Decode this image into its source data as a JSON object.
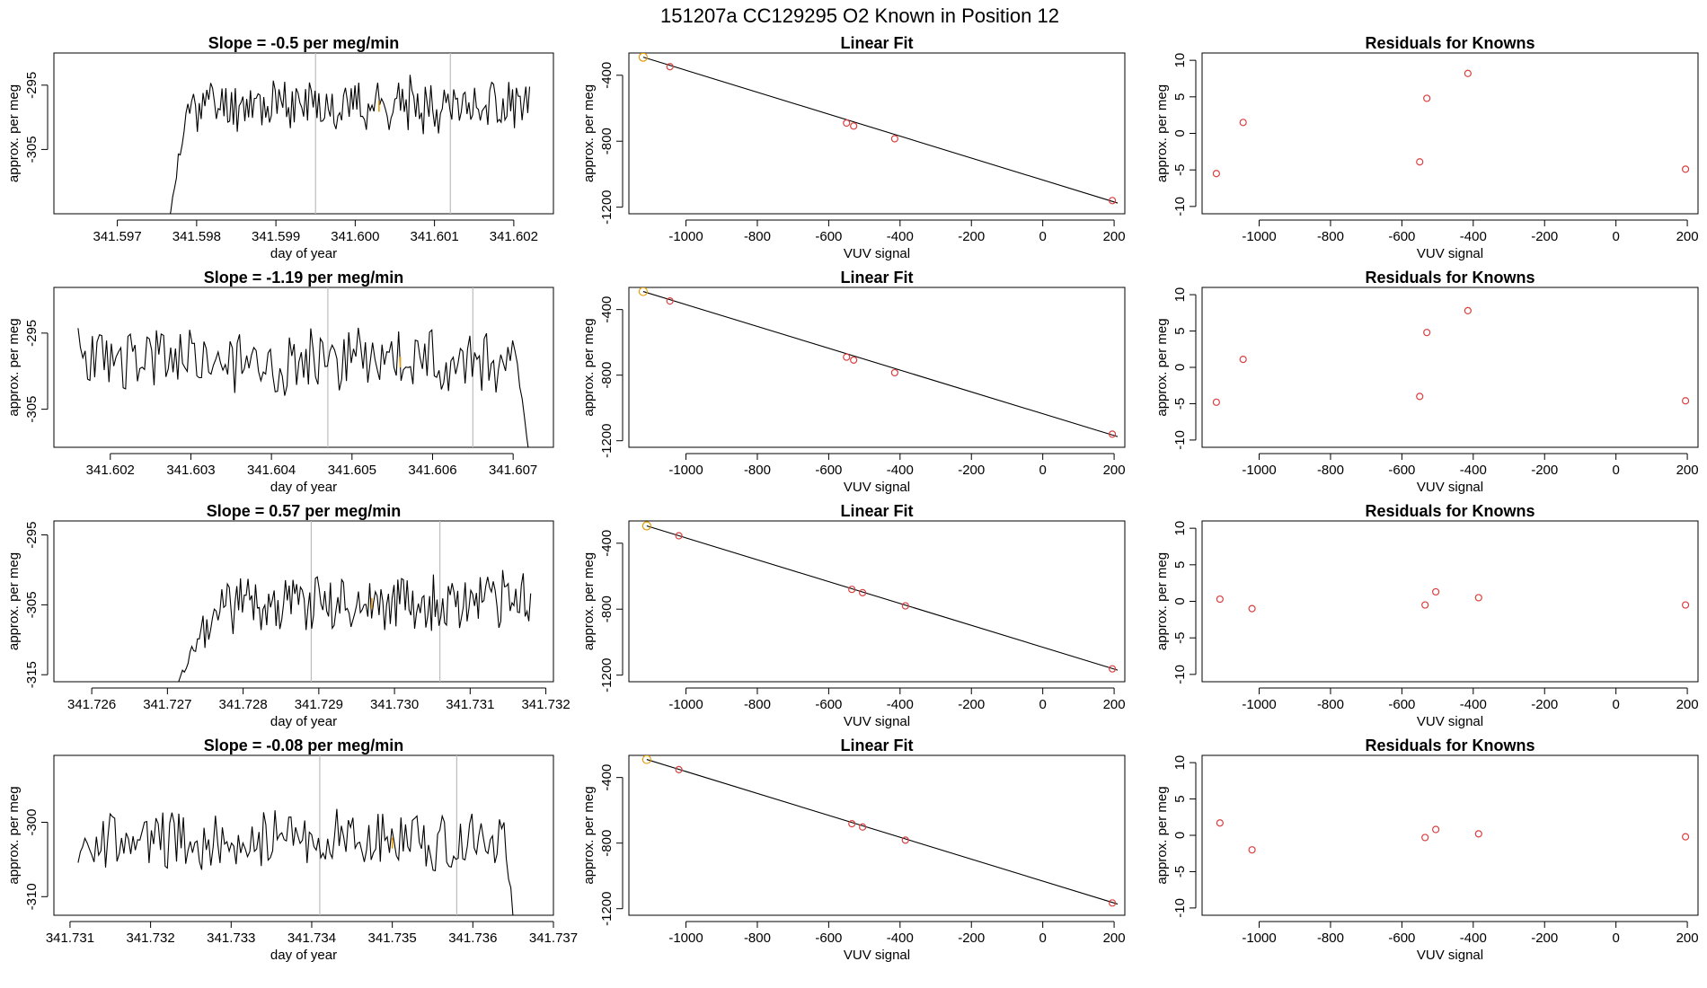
{
  "figure_title": "151207a      CC129295    O2 Known in Position  12",
  "chart_data": [
    {
      "type": "line",
      "panel": "time-series",
      "row": 1,
      "title": "Slope =  -0.5  per meg/min",
      "xlabel": "day of year",
      "ylabel": "approx. per meg",
      "xlim": [
        341.5962,
        341.6025
      ],
      "ylim": [
        -315,
        -290
      ],
      "xticks": [
        {
          "v": 341.597,
          "label": "341.597"
        },
        {
          "v": 341.598,
          "label": "341.598"
        },
        {
          "v": 341.599,
          "label": "341.599"
        },
        {
          "v": 341.6,
          "label": "341.600"
        },
        {
          "v": 341.601,
          "label": "341.601"
        },
        {
          "v": 341.602,
          "label": "341.602"
        }
      ],
      "yticks": [
        {
          "v": -295,
          "label": "-295"
        },
        {
          "v": -305,
          "label": "-305"
        }
      ],
      "vlines": [
        341.5995,
        341.6012
      ],
      "highlight_x": 341.6003,
      "series_seed": 11,
      "series_start": 341.59765,
      "series_end": 341.6022,
      "series_base": -298.0,
      "series_amp": 2.6,
      "series_drop_from": -316,
      "series_drop_end": 0,
      "series_drop_len": 0.00025
    },
    {
      "type": "scatter",
      "panel": "linear-fit",
      "row": 1,
      "title": "Linear Fit",
      "xlabel": "VUV signal",
      "ylabel": "approx. per meg",
      "xlim": [
        -1160,
        230
      ],
      "ylim": [
        -1240,
        -265
      ],
      "xticks": [
        {
          "v": -1000,
          "label": "-1000"
        },
        {
          "v": -800,
          "label": "-800"
        },
        {
          "v": -600,
          "label": "-600"
        },
        {
          "v": -400,
          "label": "-400"
        },
        {
          "v": -200,
          "label": "-200"
        },
        {
          "v": 0,
          "label": "0"
        },
        {
          "v": 200,
          "label": "200"
        }
      ],
      "yticks": [
        {
          "v": -400,
          "label": "-400"
        },
        {
          "v": -800,
          "label": "-800"
        },
        {
          "v": -1200,
          "label": "-1200"
        }
      ],
      "line": {
        "x1": -1120,
        "y1": -290,
        "x2": 210,
        "y2": -1175
      },
      "points": [
        {
          "x": -1120,
          "y": -290,
          "highlight": true
        },
        {
          "x": -1045,
          "y": -348
        },
        {
          "x": -550,
          "y": -690
        },
        {
          "x": -530,
          "y": -708
        },
        {
          "x": -415,
          "y": -785
        },
        {
          "x": 195,
          "y": -1160
        }
      ]
    },
    {
      "type": "scatter",
      "panel": "residuals",
      "row": 1,
      "title": "Residuals for Knowns",
      "xlabel": "VUV signal",
      "ylabel": "approx. per meg",
      "xlim": [
        -1160,
        230
      ],
      "ylim": [
        -11,
        11
      ],
      "xticks": [
        {
          "v": -1000,
          "label": "-1000"
        },
        {
          "v": -800,
          "label": "-800"
        },
        {
          "v": -600,
          "label": "-600"
        },
        {
          "v": -400,
          "label": "-400"
        },
        {
          "v": -200,
          "label": "-200"
        },
        {
          "v": 0,
          "label": "0"
        },
        {
          "v": 200,
          "label": "200"
        }
      ],
      "yticks": [
        {
          "v": 10,
          "label": "10"
        },
        {
          "v": 5,
          "label": "5"
        },
        {
          "v": 0,
          "label": "0"
        },
        {
          "v": -5,
          "label": "-5"
        },
        {
          "v": -10,
          "label": "-10"
        }
      ],
      "points": [
        {
          "x": -1120,
          "y": -5.5
        },
        {
          "x": -1045,
          "y": 1.5
        },
        {
          "x": -550,
          "y": -3.9
        },
        {
          "x": -530,
          "y": 4.8
        },
        {
          "x": -415,
          "y": 8.2
        },
        {
          "x": 195,
          "y": -4.9
        }
      ]
    },
    {
      "type": "line",
      "panel": "time-series",
      "row": 2,
      "title": "Slope =  -1.19  per meg/min",
      "xlabel": "day of year",
      "ylabel": "approx. per meg",
      "xlim": [
        341.6013,
        341.6075
      ],
      "ylim": [
        -310,
        -289
      ],
      "xticks": [
        {
          "v": 341.602,
          "label": "341.602"
        },
        {
          "v": 341.603,
          "label": "341.603"
        },
        {
          "v": 341.604,
          "label": "341.604"
        },
        {
          "v": 341.605,
          "label": "341.605"
        },
        {
          "v": 341.606,
          "label": "341.606"
        },
        {
          "v": 341.607,
          "label": "341.607"
        }
      ],
      "yticks": [
        {
          "v": -295,
          "label": "-295"
        },
        {
          "v": -305,
          "label": "-305"
        }
      ],
      "vlines": [
        341.6047,
        341.6065
      ],
      "highlight_x": 341.6056,
      "series_seed": 23,
      "series_start": 341.6016,
      "series_end": 341.6072,
      "series_base": -298.5,
      "series_amp": 2.8,
      "series_drop_from": 0,
      "series_drop_end": -311,
      "series_drop_len": 0.00015
    },
    {
      "type": "scatter",
      "panel": "linear-fit",
      "row": 2,
      "title": "Linear Fit",
      "xlabel": "VUV signal",
      "ylabel": "approx. per meg",
      "xlim": [
        -1160,
        230
      ],
      "ylim": [
        -1240,
        -265
      ],
      "xticks": [
        {
          "v": -1000,
          "label": "-1000"
        },
        {
          "v": -800,
          "label": "-800"
        },
        {
          "v": -600,
          "label": "-600"
        },
        {
          "v": -400,
          "label": "-400"
        },
        {
          "v": -200,
          "label": "-200"
        },
        {
          "v": 0,
          "label": "0"
        },
        {
          "v": 200,
          "label": "200"
        }
      ],
      "yticks": [
        {
          "v": -400,
          "label": "-400"
        },
        {
          "v": -800,
          "label": "-800"
        },
        {
          "v": -1200,
          "label": "-1200"
        }
      ],
      "line": {
        "x1": -1120,
        "y1": -290,
        "x2": 210,
        "y2": -1175
      },
      "points": [
        {
          "x": -1120,
          "y": -290,
          "highlight": true
        },
        {
          "x": -1045,
          "y": -348
        },
        {
          "x": -550,
          "y": -690
        },
        {
          "x": -530,
          "y": -708
        },
        {
          "x": -415,
          "y": -785
        },
        {
          "x": 195,
          "y": -1160
        }
      ]
    },
    {
      "type": "scatter",
      "panel": "residuals",
      "row": 2,
      "title": "Residuals for Knowns",
      "xlabel": "VUV signal",
      "ylabel": "approx. per meg",
      "xlim": [
        -1160,
        230
      ],
      "ylim": [
        -11,
        11
      ],
      "xticks": [
        {
          "v": -1000,
          "label": "-1000"
        },
        {
          "v": -800,
          "label": "-800"
        },
        {
          "v": -600,
          "label": "-600"
        },
        {
          "v": -400,
          "label": "-400"
        },
        {
          "v": -200,
          "label": "-200"
        },
        {
          "v": 0,
          "label": "0"
        },
        {
          "v": 200,
          "label": "200"
        }
      ],
      "yticks": [
        {
          "v": 10,
          "label": "10"
        },
        {
          "v": 5,
          "label": "5"
        },
        {
          "v": 0,
          "label": "0"
        },
        {
          "v": -5,
          "label": "-5"
        },
        {
          "v": -10,
          "label": "-10"
        }
      ],
      "points": [
        {
          "x": -1120,
          "y": -4.8
        },
        {
          "x": -1045,
          "y": 1.1
        },
        {
          "x": -550,
          "y": -4.0
        },
        {
          "x": -530,
          "y": 4.8
        },
        {
          "x": -415,
          "y": 7.8
        },
        {
          "x": 195,
          "y": -4.6
        }
      ]
    },
    {
      "type": "line",
      "panel": "time-series",
      "row": 3,
      "title": "Slope =  0.57  per meg/min",
      "xlabel": "day of year",
      "ylabel": "approx. per meg",
      "xlim": [
        341.7255,
        341.7321
      ],
      "ylim": [
        -316,
        -293
      ],
      "xticks": [
        {
          "v": 341.726,
          "label": "341.726"
        },
        {
          "v": 341.727,
          "label": "341.727"
        },
        {
          "v": 341.728,
          "label": "341.728"
        },
        {
          "v": 341.729,
          "label": "341.729"
        },
        {
          "v": 341.73,
          "label": "341.730"
        },
        {
          "v": 341.731,
          "label": "341.731"
        },
        {
          "v": 341.732,
          "label": "341.732"
        }
      ],
      "yticks": [
        {
          "v": -295,
          "label": "-295"
        },
        {
          "v": -305,
          "label": "-305"
        },
        {
          "v": -315,
          "label": "-315"
        }
      ],
      "vlines": [
        341.7289,
        341.7306
      ],
      "highlight_x": 341.7297,
      "series_seed": 37,
      "series_start": 341.7271,
      "series_end": 341.7318,
      "series_base": -304.5,
      "series_amp": 2.8,
      "series_drop_from": -317,
      "series_drop_end": 0,
      "series_drop_len": 0.0006
    },
    {
      "type": "scatter",
      "panel": "linear-fit",
      "row": 3,
      "title": "Linear Fit",
      "xlabel": "VUV signal",
      "ylabel": "approx. per meg",
      "xlim": [
        -1160,
        230
      ],
      "ylim": [
        -1240,
        -265
      ],
      "xticks": [
        {
          "v": -1000,
          "label": "-1000"
        },
        {
          "v": -800,
          "label": "-800"
        },
        {
          "v": -600,
          "label": "-600"
        },
        {
          "v": -400,
          "label": "-400"
        },
        {
          "v": -200,
          "label": "-200"
        },
        {
          "v": 0,
          "label": "0"
        },
        {
          "v": 200,
          "label": "200"
        }
      ],
      "yticks": [
        {
          "v": -400,
          "label": "-400"
        },
        {
          "v": -800,
          "label": "-800"
        },
        {
          "v": -1200,
          "label": "-1200"
        }
      ],
      "line": {
        "x1": -1110,
        "y1": -295,
        "x2": 210,
        "y2": -1170
      },
      "points": [
        {
          "x": -1110,
          "y": -295,
          "highlight": true
        },
        {
          "x": -1020,
          "y": -355
        },
        {
          "x": -535,
          "y": -680
        },
        {
          "x": -505,
          "y": -700
        },
        {
          "x": -385,
          "y": -780
        },
        {
          "x": 195,
          "y": -1162
        }
      ]
    },
    {
      "type": "scatter",
      "panel": "residuals",
      "row": 3,
      "title": "Residuals for Knowns",
      "xlabel": "VUV signal",
      "ylabel": "approx. per meg",
      "xlim": [
        -1160,
        230
      ],
      "ylim": [
        -11,
        11
      ],
      "xticks": [
        {
          "v": -1000,
          "label": "-1000"
        },
        {
          "v": -800,
          "label": "-800"
        },
        {
          "v": -600,
          "label": "-600"
        },
        {
          "v": -400,
          "label": "-400"
        },
        {
          "v": -200,
          "label": "-200"
        },
        {
          "v": 0,
          "label": "0"
        },
        {
          "v": 200,
          "label": "200"
        }
      ],
      "yticks": [
        {
          "v": 10,
          "label": "10"
        },
        {
          "v": 5,
          "label": "5"
        },
        {
          "v": 0,
          "label": "0"
        },
        {
          "v": -5,
          "label": "-5"
        },
        {
          "v": -10,
          "label": "-10"
        }
      ],
      "points": [
        {
          "x": -1110,
          "y": 0.3
        },
        {
          "x": -1020,
          "y": -1.0
        },
        {
          "x": -535,
          "y": -0.5
        },
        {
          "x": -505,
          "y": 1.3
        },
        {
          "x": -385,
          "y": 0.5
        },
        {
          "x": 195,
          "y": -0.5
        }
      ]
    },
    {
      "type": "line",
      "panel": "time-series",
      "row": 4,
      "title": "Slope =  -0.08  per meg/min",
      "xlabel": "day of year",
      "ylabel": "approx. per meg",
      "xlim": [
        341.7308,
        341.737
      ],
      "ylim": [
        -312.5,
        -291
      ],
      "xticks": [
        {
          "v": 341.731,
          "label": "341.731"
        },
        {
          "v": 341.732,
          "label": "341.732"
        },
        {
          "v": 341.733,
          "label": "341.733"
        },
        {
          "v": 341.734,
          "label": "341.734"
        },
        {
          "v": 341.735,
          "label": "341.735"
        },
        {
          "v": 341.736,
          "label": "341.736"
        },
        {
          "v": 341.737,
          "label": "341.737"
        }
      ],
      "yticks": [
        {
          "v": -300,
          "label": "-300"
        },
        {
          "v": -310,
          "label": "-310"
        }
      ],
      "vlines": [
        341.7341,
        341.7358
      ],
      "highlight_x": 341.735,
      "series_seed": 53,
      "series_start": 341.7311,
      "series_end": 341.7365,
      "series_base": -302.5,
      "series_amp": 2.6,
      "series_drop_from": 0,
      "series_drop_end": -313,
      "series_drop_len": 0.0001
    },
    {
      "type": "scatter",
      "panel": "linear-fit",
      "row": 4,
      "title": "Linear Fit",
      "xlabel": "VUV signal",
      "ylabel": "approx. per meg",
      "xlim": [
        -1160,
        230
      ],
      "ylim": [
        -1240,
        -265
      ],
      "xticks": [
        {
          "v": -1000,
          "label": "-1000"
        },
        {
          "v": -800,
          "label": "-800"
        },
        {
          "v": -600,
          "label": "-600"
        },
        {
          "v": -400,
          "label": "-400"
        },
        {
          "v": -200,
          "label": "-200"
        },
        {
          "v": 0,
          "label": "0"
        },
        {
          "v": 200,
          "label": "200"
        }
      ],
      "yticks": [
        {
          "v": -400,
          "label": "-400"
        },
        {
          "v": -800,
          "label": "-800"
        },
        {
          "v": -1200,
          "label": "-1200"
        }
      ],
      "line": {
        "x1": -1110,
        "y1": -290,
        "x2": 210,
        "y2": -1172
      },
      "points": [
        {
          "x": -1110,
          "y": -290,
          "highlight": true
        },
        {
          "x": -1020,
          "y": -352
        },
        {
          "x": -535,
          "y": -682
        },
        {
          "x": -505,
          "y": -702
        },
        {
          "x": -385,
          "y": -782
        },
        {
          "x": 195,
          "y": -1165
        }
      ]
    },
    {
      "type": "scatter",
      "panel": "residuals",
      "row": 4,
      "title": "Residuals for Knowns",
      "xlabel": "VUV signal",
      "ylabel": "approx. per meg",
      "xlim": [
        -1160,
        230
      ],
      "ylim": [
        -11,
        11
      ],
      "xticks": [
        {
          "v": -1000,
          "label": "-1000"
        },
        {
          "v": -800,
          "label": "-800"
        },
        {
          "v": -600,
          "label": "-600"
        },
        {
          "v": -400,
          "label": "-400"
        },
        {
          "v": -200,
          "label": "-200"
        },
        {
          "v": 0,
          "label": "0"
        },
        {
          "v": 200,
          "label": "200"
        }
      ],
      "yticks": [
        {
          "v": 10,
          "label": "10"
        },
        {
          "v": 5,
          "label": "5"
        },
        {
          "v": 0,
          "label": "0"
        },
        {
          "v": -5,
          "label": "-5"
        },
        {
          "v": -10,
          "label": "-10"
        }
      ],
      "points": [
        {
          "x": -1110,
          "y": 1.7
        },
        {
          "x": -1020,
          "y": -2.0
        },
        {
          "x": -535,
          "y": -0.3
        },
        {
          "x": -505,
          "y": 0.8
        },
        {
          "x": -385,
          "y": 0.2
        },
        {
          "x": 195,
          "y": -0.2
        }
      ]
    }
  ],
  "colors": {
    "series": "#000000",
    "point": "#d94040",
    "highlight": "#e69b00",
    "vline": "#bdbdbd",
    "axis": "#000000"
  }
}
